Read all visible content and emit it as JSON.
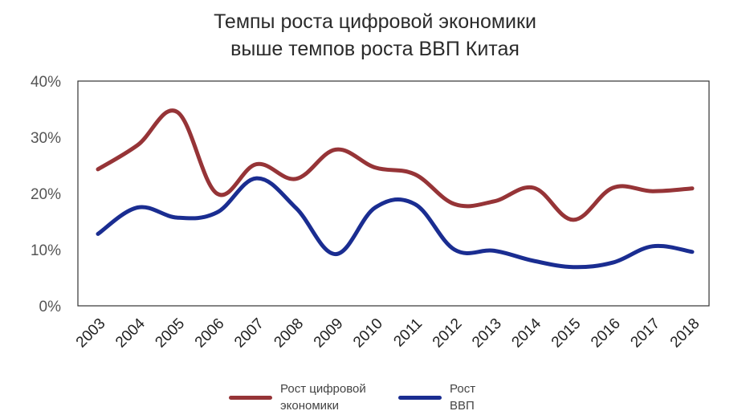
{
  "chart_data": {
    "type": "line",
    "title_lines": [
      "Темпы роста цифровой экономики",
      "выше темпов роста ВВП Китая"
    ],
    "x": [
      "2003",
      "2004",
      "2005",
      "2006",
      "2007",
      "2008",
      "2009",
      "2010",
      "2011",
      "2012",
      "2013",
      "2014",
      "2015",
      "2016",
      "2017",
      "2018"
    ],
    "y_ticks": [
      "40%",
      "30%",
      "20%",
      "10%",
      "0%"
    ],
    "ylim": [
      0,
      40
    ],
    "grid": false,
    "legend_position": "bottom",
    "series": [
      {
        "name_lines": [
          "Рост цифровой",
          "экономики"
        ],
        "color": "#963437",
        "values": [
          24.3,
          28.6,
          34.5,
          20.0,
          25.2,
          22.6,
          27.8,
          24.6,
          23.4,
          18.1,
          18.6,
          21.0,
          15.3,
          21.0,
          20.4,
          20.9
        ]
      },
      {
        "name_lines": [
          "Рост",
          "ВВП"
        ],
        "color": "#1a2d91",
        "values": [
          12.8,
          17.5,
          15.7,
          16.6,
          22.7,
          17.4,
          9.2,
          17.5,
          18.1,
          10.0,
          9.8,
          8.0,
          6.9,
          7.7,
          10.6,
          9.6
        ]
      }
    ]
  }
}
